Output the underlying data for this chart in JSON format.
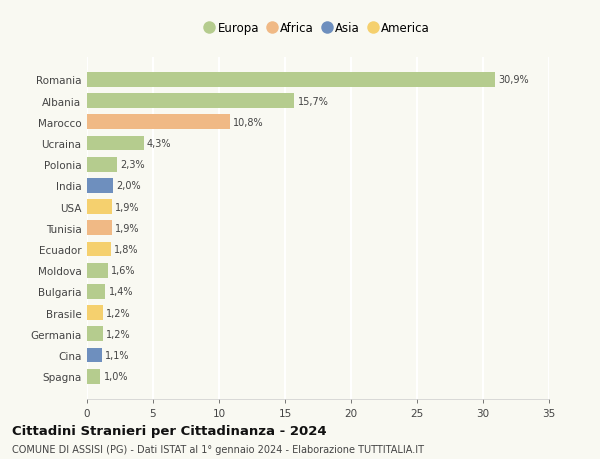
{
  "categories": [
    "Romania",
    "Albania",
    "Marocco",
    "Ucraina",
    "Polonia",
    "India",
    "USA",
    "Tunisia",
    "Ecuador",
    "Moldova",
    "Bulgaria",
    "Brasile",
    "Germania",
    "Cina",
    "Spagna"
  ],
  "values": [
    30.9,
    15.7,
    10.8,
    4.3,
    2.3,
    2.0,
    1.9,
    1.9,
    1.8,
    1.6,
    1.4,
    1.2,
    1.2,
    1.1,
    1.0
  ],
  "labels": [
    "30,9%",
    "15,7%",
    "10,8%",
    "4,3%",
    "2,3%",
    "2,0%",
    "1,9%",
    "1,9%",
    "1,8%",
    "1,6%",
    "1,4%",
    "1,2%",
    "1,2%",
    "1,1%",
    "1,0%"
  ],
  "colors": [
    "#b5cc8e",
    "#b5cc8e",
    "#f0b985",
    "#b5cc8e",
    "#b5cc8e",
    "#6e8fbe",
    "#f5d06e",
    "#f0b985",
    "#f5d06e",
    "#b5cc8e",
    "#b5cc8e",
    "#f5d06e",
    "#b5cc8e",
    "#6e8fbe",
    "#b5cc8e"
  ],
  "legend": [
    {
      "label": "Europa",
      "color": "#b5cc8e"
    },
    {
      "label": "Africa",
      "color": "#f0b985"
    },
    {
      "label": "Asia",
      "color": "#6e8fbe"
    },
    {
      "label": "America",
      "color": "#f5d06e"
    }
  ],
  "xlim": [
    0,
    35
  ],
  "xticks": [
    0,
    5,
    10,
    15,
    20,
    25,
    30,
    35
  ],
  "title": "Cittadini Stranieri per Cittadinanza - 2024",
  "subtitle": "COMUNE DI ASSISI (PG) - Dati ISTAT al 1° gennaio 2024 - Elaborazione TUTTITALIA.IT",
  "background_color": "#f9f9f2",
  "grid_color": "#ffffff",
  "bar_height": 0.7
}
